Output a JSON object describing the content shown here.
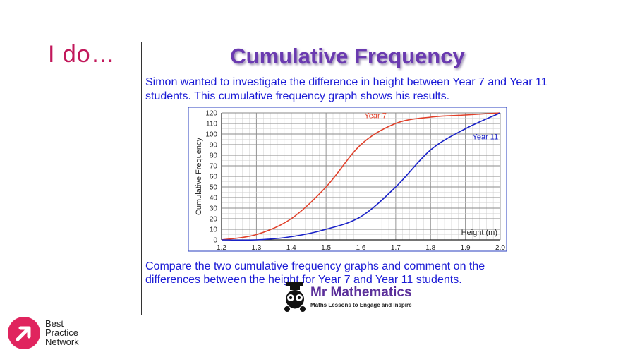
{
  "slide": {
    "tag": "I do…",
    "title": "Cumulative Frequency",
    "intro": "Simon wanted to investigate the difference in height between Year 7 and Year 11 students.  This cumulative frequency graph shows his results.",
    "question": "Compare the two cumulative frequency graphs and comment on the differences between the height for Year 7 and Year 11 students."
  },
  "brand": {
    "name": "Mr Mathematics",
    "tagline": "Maths Lessons to Engage and Inspire"
  },
  "network": {
    "line1": "Best",
    "line2": "Practice",
    "line3": "Network"
  },
  "colors": {
    "title": "#6a3ab0",
    "text": "#1a1ad6",
    "year7": "#e0402a",
    "year11": "#1a22c8",
    "accent": "#e0245e"
  },
  "chart_data": {
    "type": "line",
    "title": "",
    "xlabel": "Height (m)",
    "ylabel": "Cumulative Frequency",
    "xlim": [
      1.2,
      2.0
    ],
    "ylim": [
      0,
      120
    ],
    "x_ticks": [
      "1.2",
      "1.3",
      "1.4",
      "1.5",
      "1.6",
      "1.7",
      "1.8",
      "1.9",
      "2.0"
    ],
    "y_ticks": [
      "0",
      "10",
      "20",
      "30",
      "40",
      "50",
      "60",
      "70",
      "80",
      "90",
      "100",
      "110",
      "120"
    ],
    "grid": true,
    "series": [
      {
        "name": "Year 7",
        "x": [
          1.2,
          1.3,
          1.4,
          1.5,
          1.6,
          1.7,
          1.8,
          1.9,
          2.0
        ],
        "values": [
          0,
          5,
          20,
          50,
          90,
          110,
          116,
          118,
          120
        ]
      },
      {
        "name": "Year 11",
        "x": [
          1.2,
          1.3,
          1.4,
          1.5,
          1.6,
          1.7,
          1.8,
          1.9,
          2.0
        ],
        "values": [
          0,
          0,
          3,
          10,
          22,
          50,
          85,
          105,
          120
        ]
      }
    ]
  }
}
